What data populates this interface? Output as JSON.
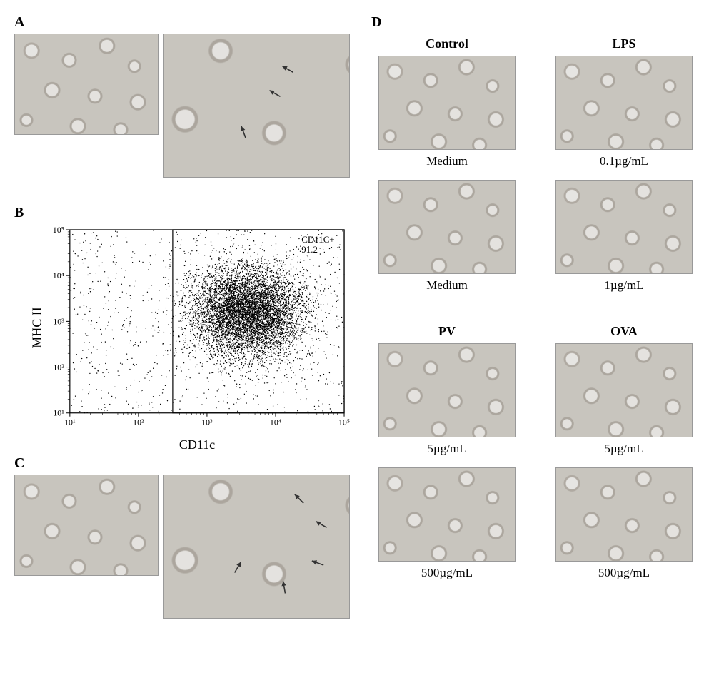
{
  "panel_labels": {
    "A": "A",
    "B": "B",
    "C": "C",
    "D": "D"
  },
  "panelB": {
    "type": "scatter",
    "xlabel": "CD11c",
    "ylabel": "MHC II",
    "xscale": "log",
    "yscale": "log",
    "xlim": [
      10,
      100000
    ],
    "ylim": [
      10,
      100000
    ],
    "xtick_labels": [
      "10¹",
      "10²",
      "10³",
      "10⁴",
      "10⁵"
    ],
    "ytick_labels": [
      "10¹",
      "10²",
      "10³",
      "10⁴",
      "10⁵"
    ],
    "tick_fontsize": 12,
    "label_fontsize": 18,
    "point_color": "#000000",
    "point_radius": 0.7,
    "background_color": "#ffffff",
    "axis_color": "#000000",
    "n_points_approx": 8000,
    "cloud_center_log10": [
      3.6,
      3.2
    ],
    "cloud_spread_log10": [
      0.9,
      1.1
    ],
    "gate": {
      "label_line1": "CD11C+",
      "label_line2": "91.2",
      "x_log10": 2.5,
      "box_color": "#000000"
    }
  },
  "panelD": {
    "groups": [
      {
        "header": "Control",
        "rows": [
          {
            "caption": "Medium"
          },
          {
            "caption": "Medium"
          }
        ]
      },
      {
        "header": "LPS",
        "rows": [
          {
            "caption": "0.1µg/mL"
          },
          {
            "caption": "1µg/mL"
          }
        ]
      },
      {
        "header": "PV",
        "rows": [
          {
            "caption": "5µg/mL"
          },
          {
            "caption": "500µg/mL"
          }
        ]
      },
      {
        "header": "OVA",
        "rows": [
          {
            "caption": "5µg/mL"
          },
          {
            "caption": "500µg/mL"
          }
        ]
      }
    ],
    "caption_fontsize": 17,
    "header_fontsize": 18,
    "micrograph_bg": "#c8c5be"
  },
  "colors": {
    "text": "#000000",
    "page_bg": "#ffffff",
    "micrograph_bg": "#c8c5be",
    "micrograph_border": "#999999"
  }
}
